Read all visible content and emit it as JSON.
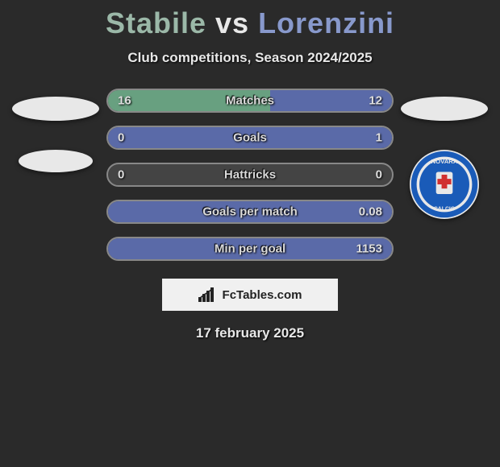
{
  "title": {
    "player1": "Stabile",
    "vs": "vs",
    "player2": "Lorenzini"
  },
  "subtitle": "Club competitions, Season 2024/2025",
  "stats": [
    {
      "label": "Matches",
      "leftVal": "16",
      "rightVal": "12",
      "leftPct": 57.1,
      "rightPct": 42.9
    },
    {
      "label": "Goals",
      "leftVal": "0",
      "rightVal": "1",
      "leftPct": 0,
      "rightPct": 100
    },
    {
      "label": "Hattricks",
      "leftVal": "0",
      "rightVal": "0",
      "leftPct": 0,
      "rightPct": 0
    },
    {
      "label": "Goals per match",
      "leftVal": "",
      "rightVal": "0.08",
      "leftPct": 0,
      "rightPct": 100
    },
    {
      "label": "Min per goal",
      "leftVal": "",
      "rightVal": "1153",
      "leftPct": 0,
      "rightPct": 100
    }
  ],
  "colors": {
    "leftFill": "#68a080",
    "rightFill": "#5a6aa8",
    "barBorder": "#888",
    "barBg": "#444",
    "pageBg": "#2a2a2a"
  },
  "brand": "FcTables.com",
  "date": "17 february 2025",
  "badges": {
    "right_team": "NOVARA"
  }
}
